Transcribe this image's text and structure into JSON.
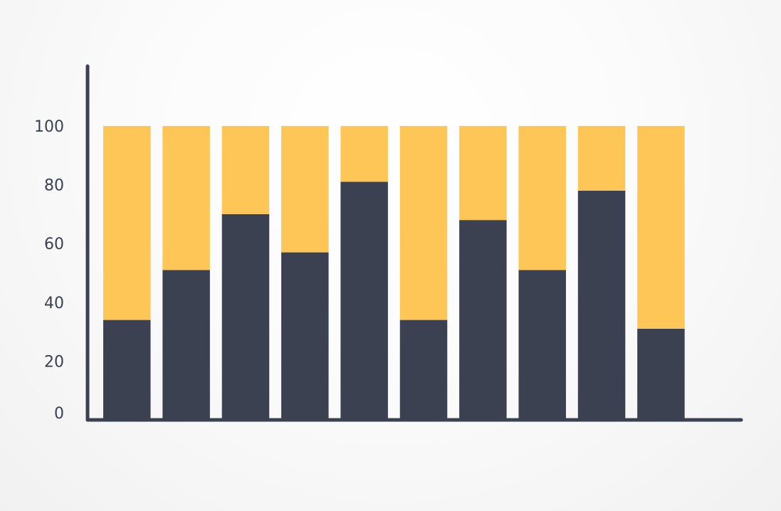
{
  "chart_data": {
    "type": "bar",
    "stacked": true,
    "categories": [
      "",
      "",
      "",
      "",
      "",
      "",
      "",
      "",
      "",
      ""
    ],
    "series": [
      {
        "values": [
          34,
          51,
          70,
          57,
          81,
          34,
          68,
          51,
          78,
          31
        ],
        "color": "#3b4150"
      },
      {
        "values": [
          66,
          49,
          30,
          43,
          19,
          66,
          32,
          49,
          22,
          69
        ],
        "color": "#fdc656"
      }
    ],
    "yticks": [
      "0",
      "20",
      "40",
      "60",
      "80",
      "100"
    ],
    "ylim": [
      0,
      100
    ],
    "grid": false,
    "legend": "none",
    "axis_color": "#3b4150",
    "tick_label_color": "#3b4150"
  }
}
